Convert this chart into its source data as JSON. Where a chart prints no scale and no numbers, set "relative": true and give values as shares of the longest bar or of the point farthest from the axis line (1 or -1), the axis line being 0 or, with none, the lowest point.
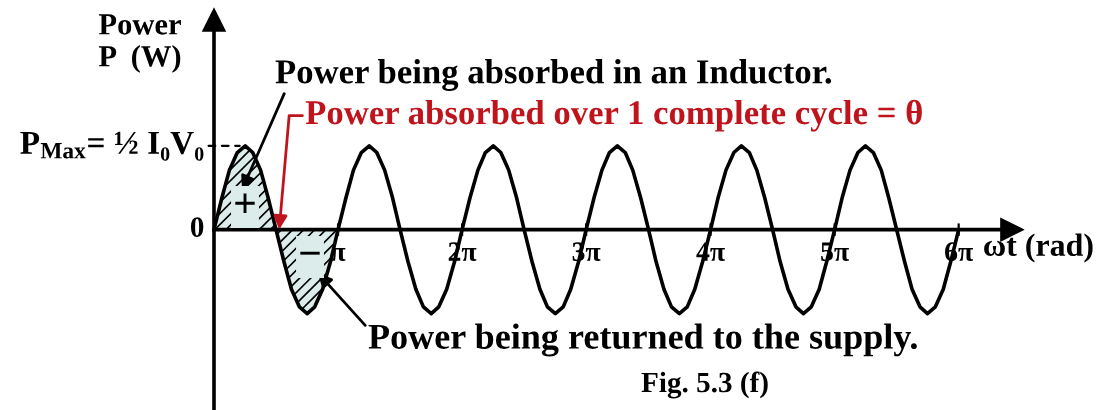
{
  "chart_data": {
    "type": "line",
    "relative": true,
    "xlabel": "ωt (rad)",
    "ylabel": "Power\nP  (W)",
    "xlim": [
      0,
      20.2
    ],
    "xticks": [
      {
        "value": 3.14,
        "label": "π"
      },
      {
        "value": 6.28,
        "label": "2π"
      },
      {
        "value": 9.42,
        "label": "3π"
      },
      {
        "value": 12.57,
        "label": "4π"
      },
      {
        "value": 15.71,
        "label": "5π"
      },
      {
        "value": 18.85,
        "label": "6π"
      }
    ],
    "line_style": "solid",
    "series": [
      {
        "type": "area",
        "color": "#dcecea",
        "x": [
          0,
          0.2,
          0.39,
          0.59,
          0.79,
          0.98,
          1.18,
          1.37,
          1.57,
          1.77,
          1.96,
          2.16,
          2.36,
          2.55,
          2.75,
          2.95,
          3.14
        ],
        "values": [
          0,
          0.38,
          0.71,
          0.92,
          1,
          0.92,
          0.71,
          0.38,
          0,
          -0.38,
          -0.71,
          -0.92,
          -1,
          -0.92,
          -0.71,
          -0.38,
          0
        ]
      },
      {
        "color": "#000000",
        "x": [
          0,
          0.2,
          0.39,
          0.59,
          0.79,
          0.98,
          1.18,
          1.37,
          1.57,
          1.77,
          1.96,
          2.16,
          2.36,
          2.55,
          2.75,
          2.95,
          3.14,
          3.34,
          3.53,
          3.73,
          3.93,
          4.12,
          4.32,
          4.52,
          4.71,
          4.91,
          5.11,
          5.3,
          5.5,
          5.69,
          5.89,
          6.09,
          6.28,
          6.48,
          6.68,
          6.87,
          7.07,
          7.26,
          7.46,
          7.66,
          7.85,
          8.05,
          8.25,
          8.44,
          8.64,
          8.84,
          9.03,
          9.23,
          9.42,
          9.62,
          9.82,
          10.01,
          10.21,
          10.41,
          10.6,
          10.8,
          11.0,
          11.19,
          11.39,
          11.58,
          11.78,
          11.98,
          12.17,
          12.37,
          12.57,
          12.76,
          12.96,
          13.16,
          13.35,
          13.55,
          13.74,
          13.94,
          14.14,
          14.33,
          14.53,
          14.73,
          14.92,
          15.12,
          15.32,
          15.51,
          15.71,
          15.9,
          16.1,
          16.3,
          16.49,
          16.69,
          16.89,
          17.08,
          17.28,
          17.48,
          17.67,
          17.87,
          18.06,
          18.26,
          18.46,
          18.65,
          18.85
        ],
        "values": [
          0,
          0.38,
          0.71,
          0.92,
          1,
          0.92,
          0.71,
          0.38,
          0,
          -0.38,
          -0.71,
          -0.92,
          -1,
          -0.92,
          -0.71,
          -0.38,
          0,
          0.38,
          0.71,
          0.92,
          1,
          0.92,
          0.71,
          0.38,
          0,
          -0.38,
          -0.71,
          -0.92,
          -1,
          -0.92,
          -0.71,
          -0.38,
          0,
          0.38,
          0.71,
          0.92,
          1,
          0.92,
          0.71,
          0.38,
          0,
          -0.38,
          -0.71,
          -0.92,
          -1,
          -0.92,
          -0.71,
          -0.38,
          0,
          0.38,
          0.71,
          0.92,
          1,
          0.92,
          0.71,
          0.38,
          0,
          -0.38,
          -0.71,
          -0.92,
          -1,
          -0.92,
          -0.71,
          -0.38,
          0,
          0.38,
          0.71,
          0.92,
          1,
          0.92,
          0.71,
          0.38,
          0,
          -0.38,
          -0.71,
          -0.92,
          -1,
          -0.92,
          -0.71,
          -0.38,
          0,
          0.38,
          0.71,
          0.92,
          1,
          0.92,
          0.71,
          0.38,
          0,
          -0.38,
          -0.71,
          -0.92,
          -1,
          -0.92,
          -0.71,
          -0.38,
          0
        ]
      }
    ],
    "annotations": [
      "Power being absorbed in an Inductor.",
      {
        "text": "Power absorbed over 1 complete cycle = θ",
        "x": 1.65,
        "y": 0
      },
      "Power being returned to the supply.",
      "+",
      "−",
      {
        "text": "P$_{Max}$= ½ I₀V₀",
        "x": 0.79,
        "y": 1
      },
      {
        "text": "0",
        "x": 0,
        "y": 0
      },
      "Fig. 5.3 (f)"
    ]
  }
}
